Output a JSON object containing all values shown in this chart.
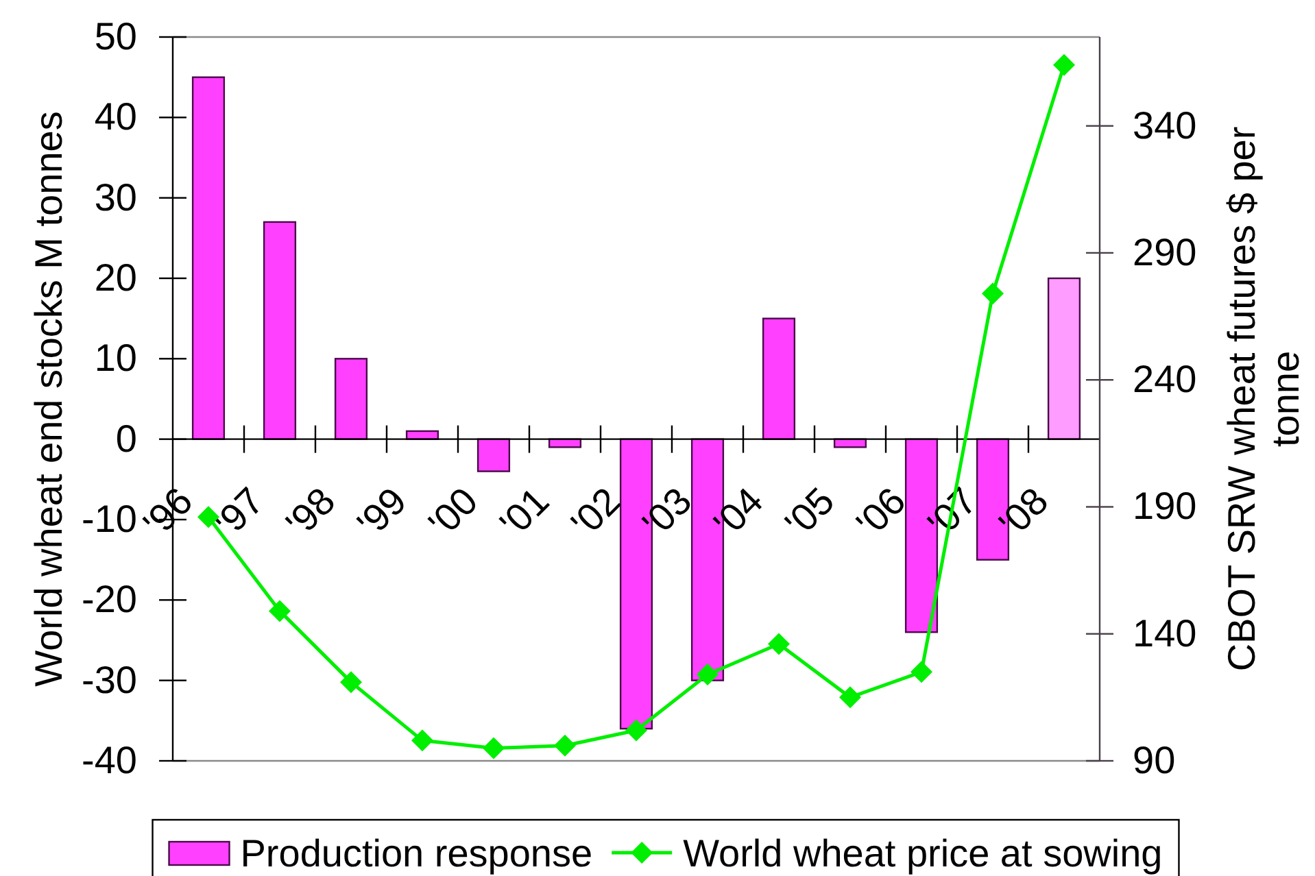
{
  "chart_data": {
    "type": "bar",
    "categories": [
      "'96",
      "'97",
      "'98",
      "'99",
      "'00",
      "'01",
      "'02",
      "'03",
      "'04",
      "'05",
      "'06",
      "'07",
      "'08"
    ],
    "series": [
      {
        "name": "Production response",
        "color": "#ff40ff",
        "colors": [
          "#ff40ff",
          "#ff40ff",
          "#ff40ff",
          "#ff40ff",
          "#ff40ff",
          "#ff40ff",
          "#ff40ff",
          "#ff40ff",
          "#ff40ff",
          "#ff40ff",
          "#ff40ff",
          "#ff40ff",
          "#ff9cff"
        ],
        "values": [
          45,
          27,
          10,
          1,
          -4,
          -1,
          -36,
          -30,
          15,
          -1,
          -24,
          -15,
          20
        ]
      },
      {
        "name": "World wheat price at sowing",
        "type": "line",
        "axis": "y2",
        "color": "#00ee00",
        "values": [
          186,
          149,
          121,
          98,
          95,
          96,
          102,
          124,
          136,
          115,
          125,
          274,
          364
        ]
      }
    ],
    "ylabel": "World wheat end stocks M tonnes",
    "y2label": "CBOT SRW wheat futures $ per tonne",
    "ylim": [
      -40,
      50
    ],
    "yticks": [
      -40,
      -30,
      -20,
      -10,
      0,
      10,
      20,
      30,
      40,
      50
    ],
    "y2lim": [
      90,
      375
    ],
    "y2ticks": [
      90,
      140,
      190,
      240,
      290,
      340
    ],
    "legend": "bottom",
    "marker": "diamond"
  }
}
